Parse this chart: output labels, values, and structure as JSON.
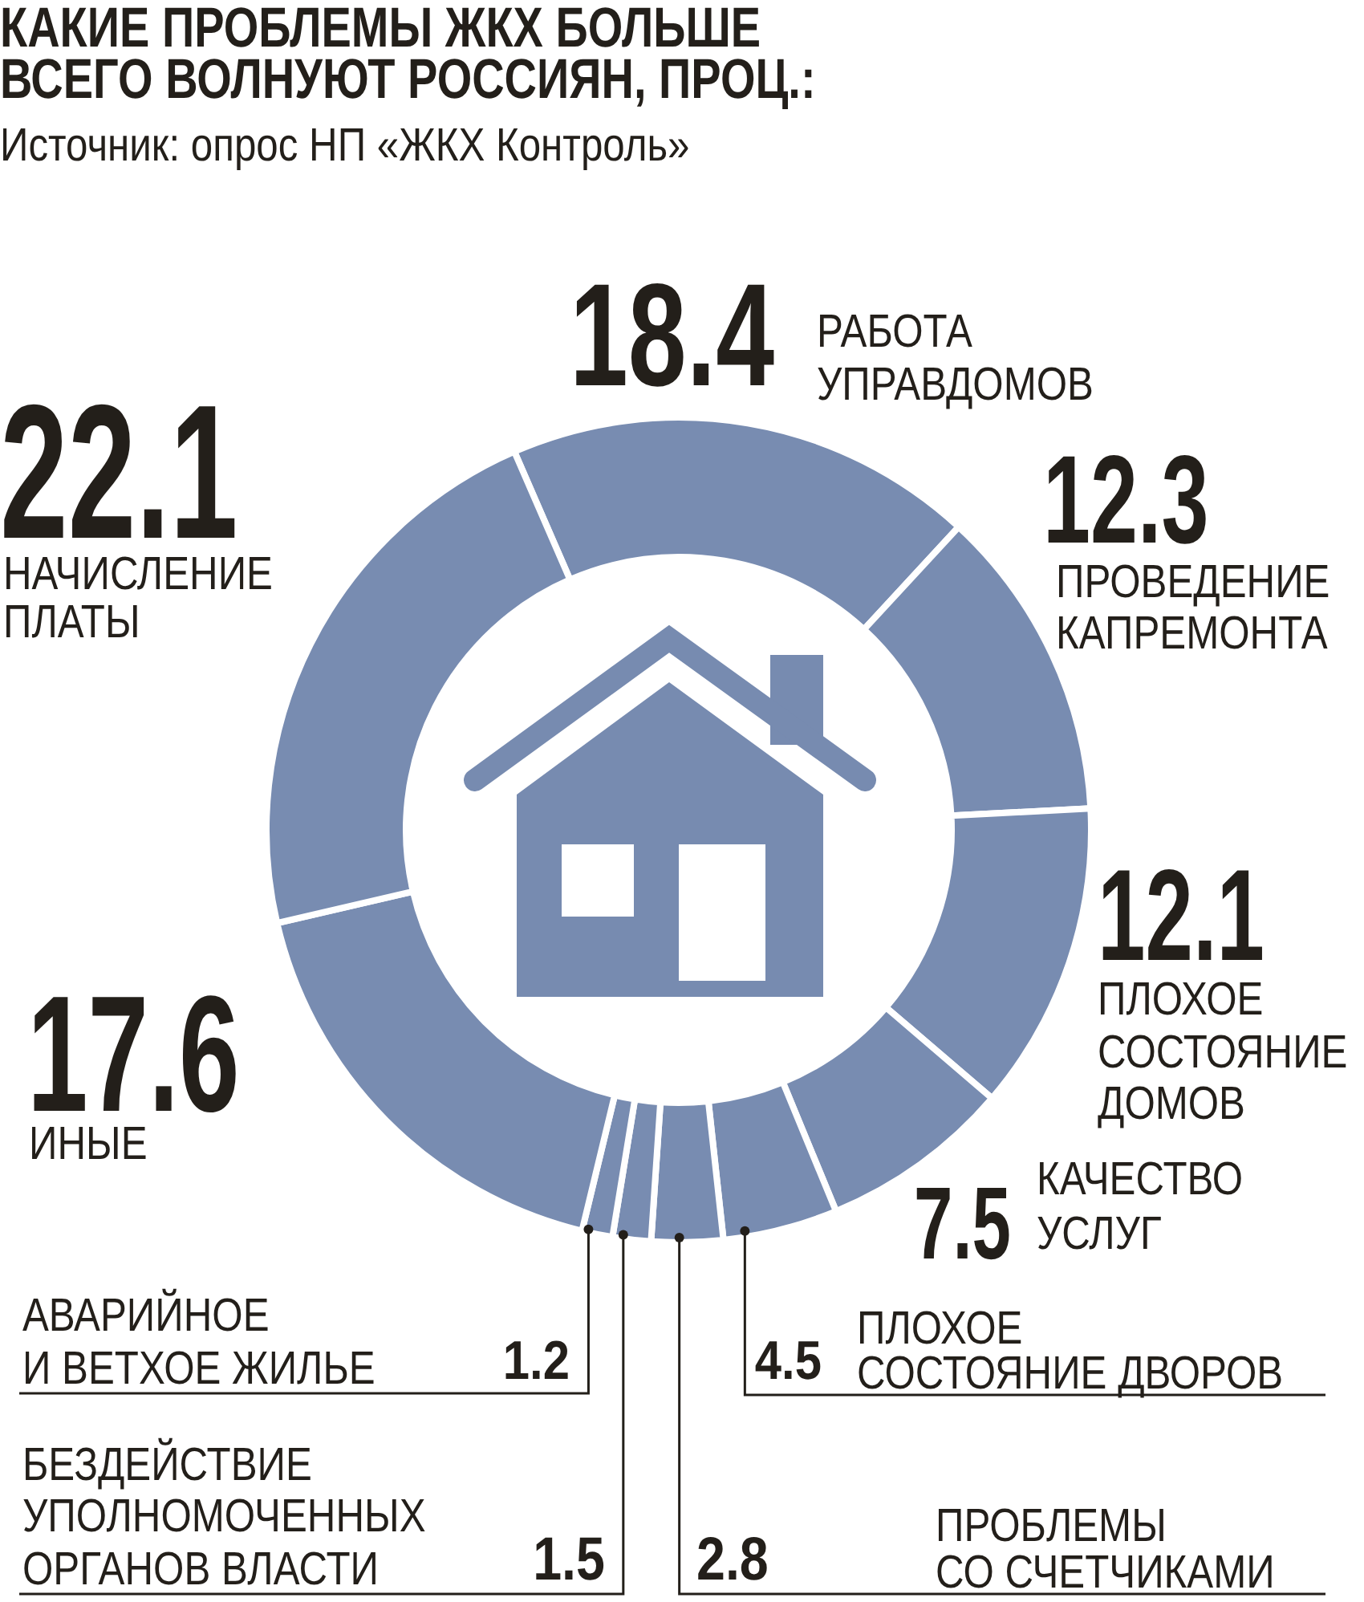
{
  "chart_data": {
    "type": "donut",
    "title": "КАКИЕ ПРОБЛЕМЫ ЖКХ БОЛЬШЕ ВСЕГО ВОЛНУЮТ РОССИЯН, ПРОЦ.:",
    "annotations": [
      "Источник: опрос НП «ЖКХ Контроль»"
    ],
    "categories": [
      "РАБОТА УПРАВДОМОВ",
      "ПРОВЕДЕНИЕ КАПРЕМОНТА",
      "ПЛОХОЕ СОСТОЯНИЕ ДОМОВ",
      "КАЧЕСТВО УСЛУГ",
      "ПЛОХОЕ СОСТОЯНИЕ ДВОРОВ",
      "ПРОБЛЕМЫ СО СЧЕТЧИКАМИ",
      "БЕЗДЕЙСТВИЕ УПОЛНОМОЧЕННЫХ ОРГАНОВ ВЛАСТИ",
      "АВАРИЙНОЕ И ВЕТХОЕ ЖИЛЬЕ",
      "ИНЫЕ",
      "НАЧИСЛЕНИЕ ПЛАТЫ"
    ],
    "values": [
      18.4,
      12.3,
      12.1,
      7.5,
      4.5,
      2.8,
      1.5,
      1.2,
      17.6,
      22.1
    ],
    "colors": [
      "#788cb1",
      "#788cb1",
      "#788cb1",
      "#788cb1",
      "#788cb1",
      "#788cb1",
      "#788cb1",
      "#788cb1",
      "#788cb1",
      "#788cb1"
    ],
    "data_labels": true
  }
}
